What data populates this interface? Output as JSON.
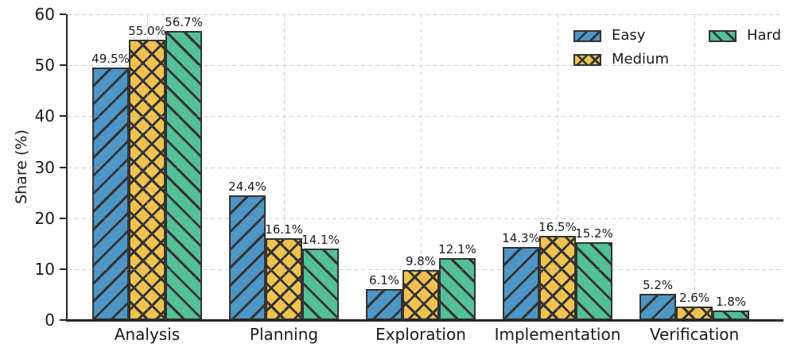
{
  "chart_data": {
    "type": "bar",
    "title": "",
    "xlabel": "",
    "ylabel": "Share (%)",
    "ylim": [
      0,
      60
    ],
    "yticks": [
      0,
      10,
      20,
      30,
      40,
      50,
      60
    ],
    "grid": "dashed, both axes, drawn over bars",
    "legend_position": "upper-right, frameless, two columns",
    "value_suffix": "%",
    "value_decimals": 1,
    "edge_color": "#333333",
    "categories": [
      "Analysis",
      "Planning",
      "Exploration",
      "Implementation",
      "Verification"
    ],
    "series": [
      {
        "name": "Easy",
        "color": "#4E96C6",
        "hatch": "forward-diagonal",
        "values": [
          49.5,
          24.4,
          6.1,
          14.3,
          5.2
        ]
      },
      {
        "name": "Medium",
        "color": "#F0C24F",
        "hatch": "cross",
        "values": [
          55.0,
          16.1,
          9.8,
          16.5,
          2.6
        ]
      },
      {
        "name": "Hard",
        "color": "#53C098",
        "hatch": "backward-diagonal",
        "values": [
          56.7,
          14.1,
          12.1,
          15.2,
          1.8
        ]
      }
    ]
  }
}
